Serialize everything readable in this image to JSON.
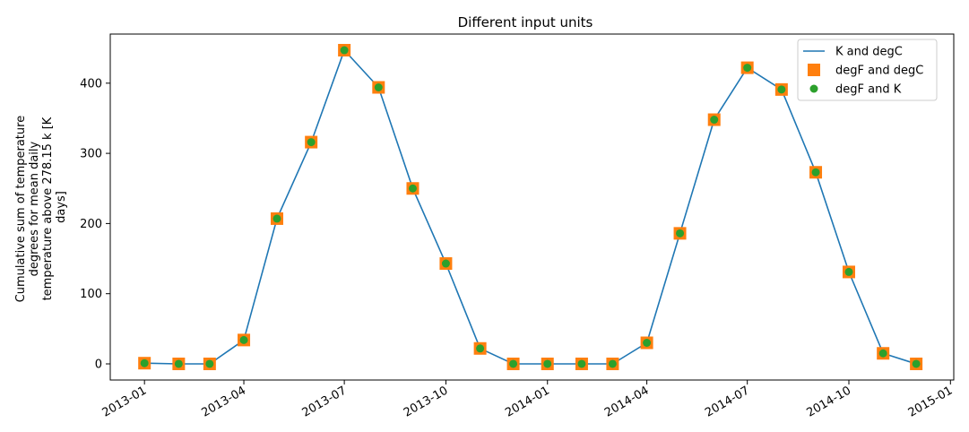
{
  "chart_data": {
    "type": "line",
    "title": "Different input units",
    "xlabel": "",
    "ylabel": "Cumulative sum of temperature degrees for mean daily temperature above 278.15 k [K days]",
    "ylabel_lines": [
      "Cumulative sum of temperature",
      "degrees for mean daily",
      "temperature above 278.15 k [K",
      "days]"
    ],
    "xlim": [
      "2012-12-01",
      "2015-01-04"
    ],
    "ylim": [
      -23,
      470
    ],
    "x_ticks": [
      "2013-01-01",
      "2013-04-01",
      "2013-07-01",
      "2013-10-01",
      "2014-01-01",
      "2014-04-01",
      "2014-07-01",
      "2014-10-01",
      "2015-01-01"
    ],
    "x_tick_labels": [
      "2013-01",
      "2013-04",
      "2013-07",
      "2013-10",
      "2014-01",
      "2014-04",
      "2014-07",
      "2014-10",
      "2015-01"
    ],
    "y_ticks": [
      0,
      100,
      200,
      300,
      400
    ],
    "y_tick_labels": [
      "0",
      "100",
      "200",
      "300",
      "400"
    ],
    "grid": false,
    "legend_position": "top-right",
    "x": [
      "2013-01-01",
      "2013-02-01",
      "2013-03-01",
      "2013-04-01",
      "2013-05-01",
      "2013-06-01",
      "2013-07-01",
      "2013-08-01",
      "2013-09-01",
      "2013-10-01",
      "2013-11-01",
      "2013-12-01",
      "2014-01-01",
      "2014-02-01",
      "2014-03-01",
      "2014-04-01",
      "2014-05-01",
      "2014-06-01",
      "2014-07-01",
      "2014-08-01",
      "2014-09-01",
      "2014-10-01",
      "2014-11-01",
      "2014-12-01"
    ],
    "series": [
      {
        "name": "K and degC",
        "kind": "line",
        "color": "#1f77b4",
        "values": [
          1,
          0,
          0,
          34,
          207,
          316,
          447,
          394,
          250,
          143,
          22,
          0,
          0,
          0,
          0,
          30,
          186,
          348,
          422,
          391,
          273,
          131,
          15,
          0
        ]
      },
      {
        "name": "degF and degC",
        "kind": "square",
        "color": "#ff7f0e",
        "values": [
          1,
          0,
          0,
          34,
          207,
          316,
          447,
          394,
          250,
          143,
          22,
          0,
          0,
          0,
          0,
          30,
          186,
          348,
          422,
          391,
          273,
          131,
          15,
          0
        ]
      },
      {
        "name": "degF and K",
        "kind": "circle",
        "color": "#2ca02c",
        "values": [
          1,
          0,
          0,
          34,
          207,
          316,
          447,
          394,
          250,
          143,
          22,
          0,
          0,
          0,
          0,
          30,
          186,
          348,
          422,
          391,
          273,
          131,
          15,
          0
        ]
      }
    ]
  }
}
